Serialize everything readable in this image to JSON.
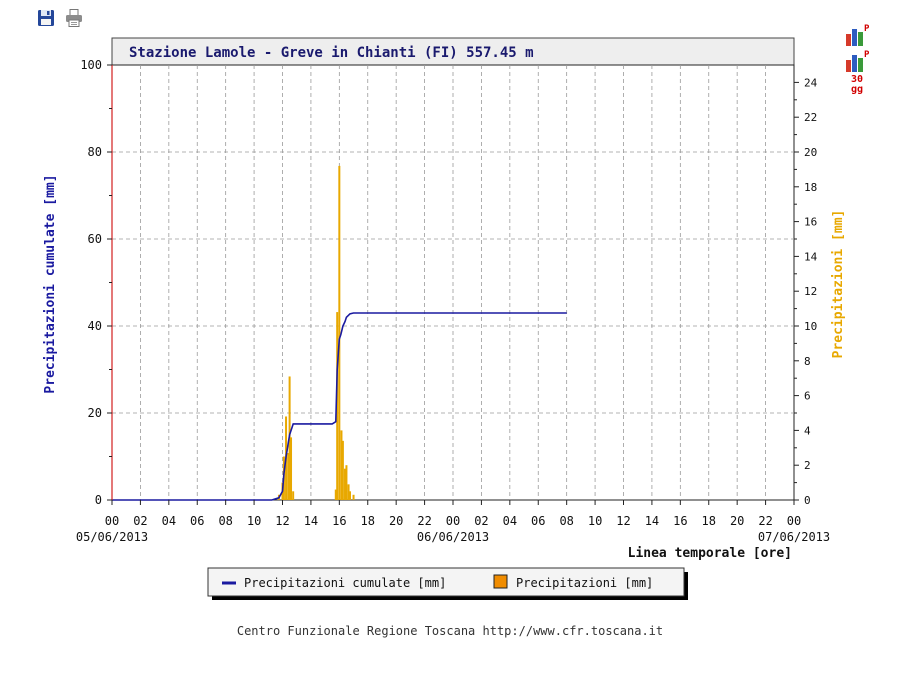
{
  "toolbar": {
    "save_icon": "floppy-disk-icon",
    "print_icon": "printer-icon"
  },
  "side_buttons": [
    {
      "icon": "bar-chart-p-icon",
      "label": ""
    },
    {
      "icon": "bar-chart-p-icon",
      "label": "30\ngg"
    }
  ],
  "footer": "Centro Funzionale Regione Toscana http://www.cfr.toscana.it",
  "colors": {
    "cumulative": "#1a1aa0",
    "hourly": "#e8a800",
    "left_axis_label": "#1a1aa0",
    "right_axis_label": "#e8a800",
    "grid": "#9a9a9a",
    "axis_left_line": "#d21e1e"
  },
  "chart_data": {
    "type": "line",
    "title": "Stazione Lamole - Greve in Chianti (FI) 557.45 m",
    "xlabel": "Linea temporale [ore]",
    "ylabel_left": "Precipitazioni cumulate [mm]",
    "ylabel_right": "Precipitazioni [mm]",
    "ylim_left": [
      0,
      100
    ],
    "ylim_right": [
      0,
      25
    ],
    "yticks_left": [
      "0",
      "20",
      "40",
      "60",
      "80",
      "100"
    ],
    "yticks_right": [
      "0",
      "2",
      "4",
      "6",
      "8",
      "10",
      "12",
      "14",
      "16",
      "18",
      "20",
      "22",
      "24"
    ],
    "xlim_hours": [
      0,
      48
    ],
    "xticks": [
      "00",
      "02",
      "04",
      "06",
      "08",
      "10",
      "12",
      "14",
      "16",
      "18",
      "20",
      "22",
      "00",
      "02",
      "04",
      "06",
      "08",
      "10",
      "12",
      "14",
      "16",
      "18",
      "20",
      "22",
      "00"
    ],
    "dates": [
      "05/06/2013",
      "06/06/2013",
      "07/06/2013"
    ],
    "grid": true,
    "legend_position": "bottom",
    "legend": [
      "Precipitazioni cumulate [mm]",
      "Precipitazioni [mm]"
    ],
    "series": [
      {
        "name": "Precipitazioni cumulate [mm]",
        "kind": "step-line",
        "x": [
          0,
          11.25,
          11.75,
          12.0,
          12.1,
          12.25,
          12.4,
          12.5,
          12.75,
          13.0,
          14.0,
          15.5,
          15.75,
          15.85,
          16.0,
          16.1,
          16.25,
          16.4,
          16.5,
          16.75,
          17.0,
          18.0,
          20.0,
          24.0,
          32.0
        ],
        "y": [
          0,
          0,
          0.5,
          2,
          6,
          10,
          13,
          15,
          17.5,
          17.5,
          17.5,
          17.5,
          18,
          30,
          37,
          38,
          40,
          41,
          42,
          42.8,
          43,
          43,
          43,
          43,
          43
        ]
      },
      {
        "name": "Precipitazioni [mm]",
        "kind": "bar",
        "x": [
          11.75,
          12.0,
          12.1,
          12.25,
          12.4,
          12.5,
          12.6,
          12.75,
          15.75,
          15.85,
          16.0,
          16.15,
          16.25,
          16.4,
          16.5,
          16.65,
          16.75,
          17.0
        ],
        "y": [
          0.3,
          1.0,
          2.5,
          4.8,
          2.7,
          7.1,
          3.6,
          0.5,
          0.6,
          10.8,
          19.2,
          4.0,
          3.4,
          1.8,
          2.0,
          0.9,
          0.5,
          0.3
        ]
      }
    ]
  }
}
